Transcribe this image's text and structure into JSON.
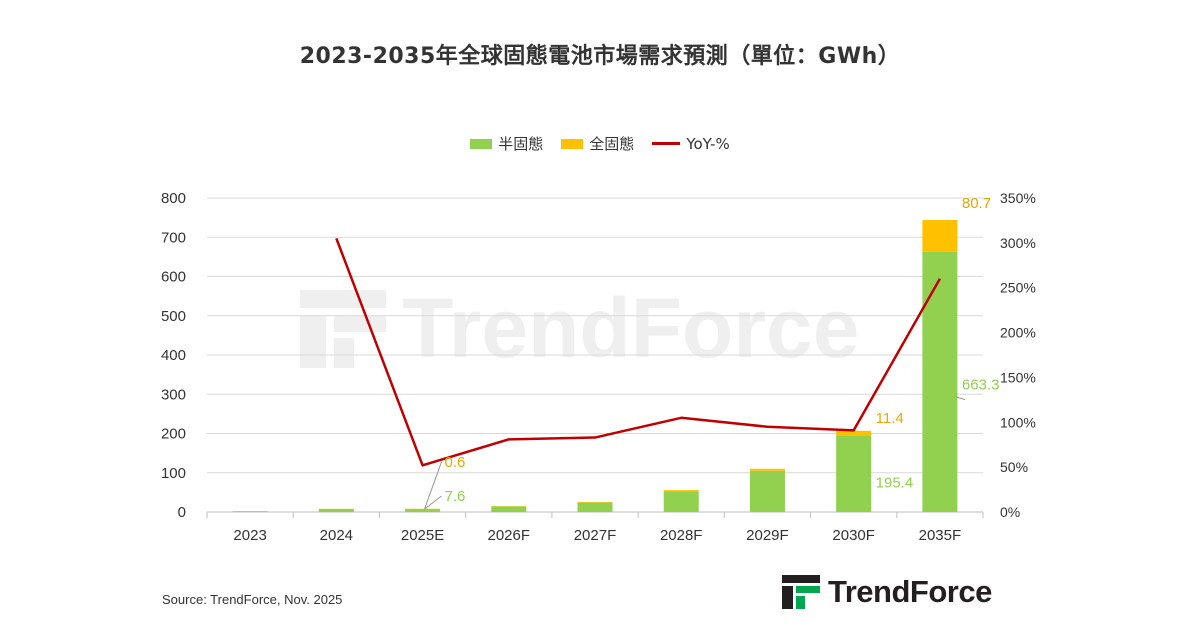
{
  "title": "2023-2035年全球固態電池市場需求預測（單位：GWh）",
  "source": "Source: TrendForce, Nov. 2025",
  "brand": "TrendForce",
  "colors": {
    "semi": "#92d050",
    "full": "#ffc000",
    "yoy": "#c00000",
    "grid": "#d9d9d9"
  },
  "chart_data": {
    "type": "bar",
    "stacked": true,
    "categories": [
      "2023",
      "2024",
      "2025E",
      "2026F",
      "2027F",
      "2028F",
      "2029F",
      "2030F",
      "2035F"
    ],
    "series": [
      {
        "name": "半固態",
        "type": "bar",
        "axis": "left",
        "color": "#92d050",
        "values": [
          2,
          8,
          7.6,
          14,
          24,
          53,
          105,
          195.4,
          663.3
        ]
      },
      {
        "name": "全固態",
        "type": "bar",
        "axis": "left",
        "color": "#ffc000",
        "values": [
          0.2,
          0.3,
          0.6,
          0.9,
          1.6,
          2.8,
          5.1,
          11.4,
          80.7
        ]
      },
      {
        "name": "YoY-%",
        "type": "line",
        "axis": "right",
        "color": "#c00000",
        "values": [
          null,
          305,
          52,
          81,
          83,
          105,
          95,
          91,
          260
        ]
      }
    ],
    "data_labels": [
      {
        "category": "2025E",
        "series": "全固態",
        "text": "0.6"
      },
      {
        "category": "2025E",
        "series": "半固態",
        "text": "7.6"
      },
      {
        "category": "2030F",
        "series": "全固態",
        "text": "11.4"
      },
      {
        "category": "2030F",
        "series": "半固態",
        "text": "195.4"
      },
      {
        "category": "2035F",
        "series": "全固態",
        "text": "80.7"
      },
      {
        "category": "2035F",
        "series": "半固態",
        "text": "663.3"
      }
    ],
    "y_left": {
      "min": 0,
      "max": 800,
      "step": 100,
      "ticks": [
        "0",
        "100",
        "200",
        "300",
        "400",
        "500",
        "600",
        "700",
        "800"
      ]
    },
    "y_right": {
      "min": 0,
      "max": 350,
      "step": 50,
      "ticks": [
        "0%",
        "50%",
        "100%",
        "150%",
        "200%",
        "250%",
        "300%",
        "350%"
      ]
    },
    "grid": true,
    "legend": "top-center"
  }
}
